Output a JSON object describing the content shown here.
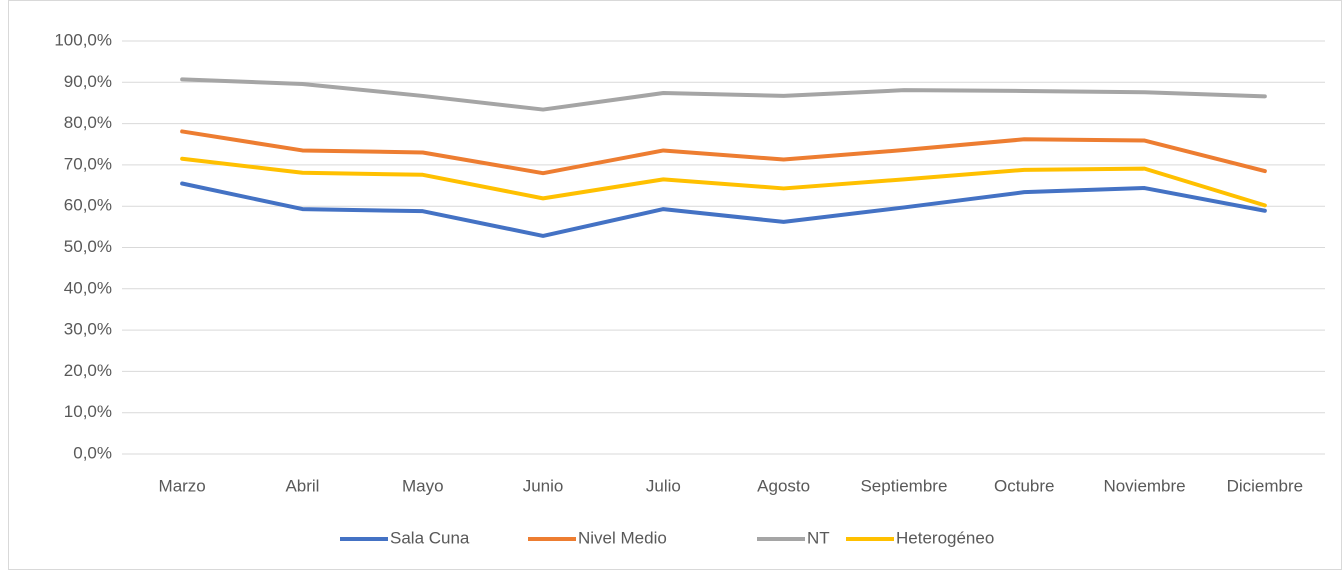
{
  "chart_data": {
    "type": "line",
    "categories": [
      "Marzo",
      "Abril",
      "Mayo",
      "Junio",
      "Julio",
      "Agosto",
      "Septiembre",
      "Octubre",
      "Noviembre",
      "Diciembre"
    ],
    "series": [
      {
        "name": "Sala Cuna",
        "color": "#4472c4",
        "values": [
          65.5,
          59.3,
          58.8,
          52.8,
          59.3,
          56.2,
          59.7,
          63.4,
          64.4,
          58.9
        ]
      },
      {
        "name": "Nivel Medio",
        "color": "#ed7d31",
        "values": [
          78.1,
          73.5,
          73.0,
          68.0,
          73.5,
          71.3,
          73.6,
          76.2,
          75.9,
          68.5
        ]
      },
      {
        "name": "NT",
        "color": "#a5a5a5",
        "values": [
          90.7,
          89.6,
          86.7,
          83.4,
          87.4,
          86.7,
          88.1,
          87.9,
          87.6,
          86.6
        ]
      },
      {
        "name": "Heterogéneo",
        "color": "#ffc000",
        "values": [
          71.5,
          68.1,
          67.6,
          61.9,
          66.5,
          64.3,
          66.5,
          68.8,
          69.1,
          60.2
        ]
      }
    ],
    "ylim": [
      0,
      100
    ],
    "yticks": [
      {
        "value": 0,
        "label": "0,0%"
      },
      {
        "value": 10,
        "label": "10,0%"
      },
      {
        "value": 20,
        "label": "20,0%"
      },
      {
        "value": 30,
        "label": "30,0%"
      },
      {
        "value": 40,
        "label": "40,0%"
      },
      {
        "value": 50,
        "label": "50,0%"
      },
      {
        "value": 60,
        "label": "60,0%"
      },
      {
        "value": 70,
        "label": "70,0%"
      },
      {
        "value": 80,
        "label": "80,0%"
      },
      {
        "value": 90,
        "label": "90,0%"
      },
      {
        "value": 100,
        "label": "100,0%"
      }
    ],
    "grid": true,
    "legend": "bottom"
  }
}
